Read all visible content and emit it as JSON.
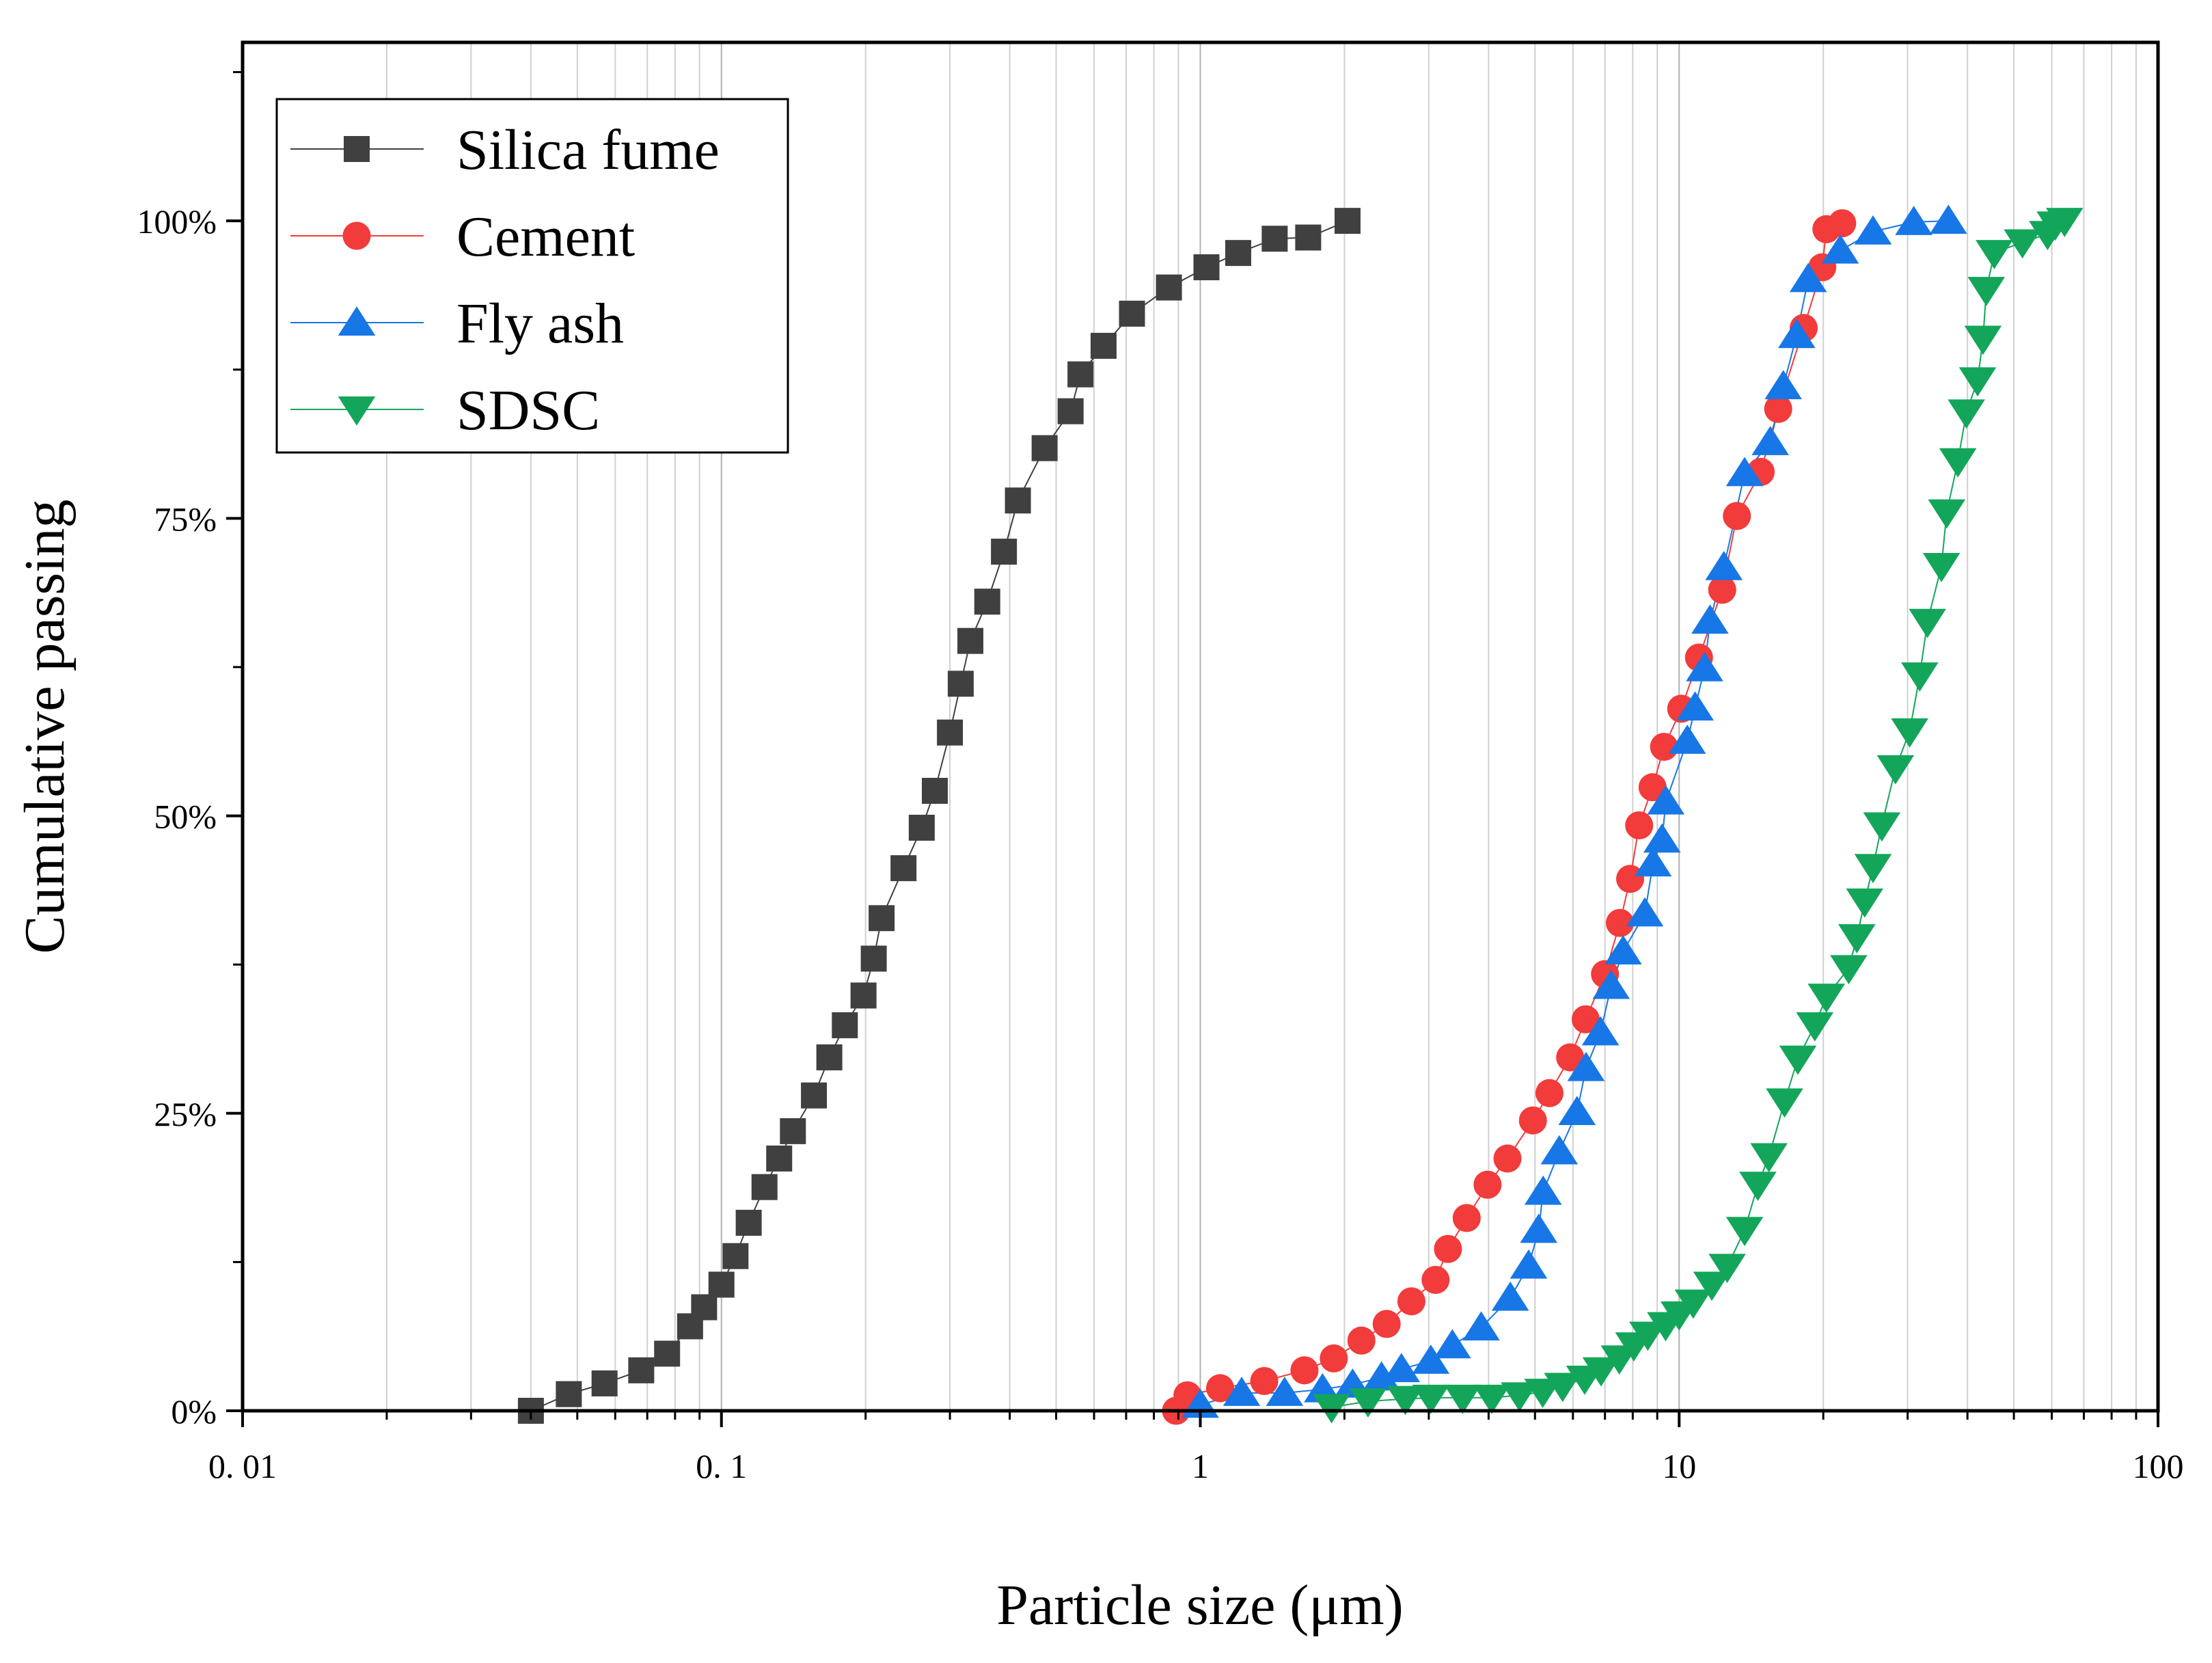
{
  "chart_data": {
    "type": "scatter",
    "title": "",
    "xlabel": "Particle size (μm)",
    "ylabel": "Cumulative passing",
    "xscale": "log",
    "xlim": [
      0.01,
      100
    ],
    "ylim": [
      0,
      1.15
    ],
    "x_ticks": [
      {
        "value": 0.01,
        "label": "0. 01"
      },
      {
        "value": 0.1,
        "label": "0. 1"
      },
      {
        "value": 1,
        "label": "1"
      },
      {
        "value": 10,
        "label": "10"
      },
      {
        "value": 100,
        "label": "100"
      }
    ],
    "y_ticks": [
      {
        "value": 0,
        "label": "0%"
      },
      {
        "value": 0.25,
        "label": "25%"
      },
      {
        "value": 0.5,
        "label": "50%"
      },
      {
        "value": 0.75,
        "label": "75%"
      },
      {
        "value": 1.0,
        "label": "100%"
      }
    ],
    "grid": "vertical-minor",
    "legend_position": "top-left",
    "series": [
      {
        "name": "Silica fume",
        "marker": "square",
        "color": "#404040",
        "x": [
          0.04,
          0.048,
          0.057,
          0.068,
          0.077,
          0.086,
          0.092,
          0.1,
          0.107,
          0.114,
          0.123,
          0.132,
          0.141,
          0.156,
          0.168,
          0.181,
          0.198,
          0.208,
          0.216,
          0.24,
          0.262,
          0.279,
          0.3,
          0.316,
          0.331,
          0.359,
          0.389,
          0.416,
          0.473,
          0.536,
          0.562,
          0.628,
          0.72,
          0.86,
          1.03,
          1.2,
          1.43,
          1.68,
          2.03
        ],
        "y": [
          0.0,
          0.014,
          0.023,
          0.034,
          0.048,
          0.071,
          0.087,
          0.106,
          0.13,
          0.158,
          0.188,
          0.212,
          0.235,
          0.265,
          0.297,
          0.324,
          0.349,
          0.38,
          0.414,
          0.456,
          0.49,
          0.521,
          0.57,
          0.611,
          0.647,
          0.68,
          0.722,
          0.765,
          0.809,
          0.84,
          0.871,
          0.895,
          0.922,
          0.944,
          0.961,
          0.973,
          0.985,
          0.986,
          1.0
        ]
      },
      {
        "name": "Cement",
        "marker": "circle",
        "color": "#f23b3b",
        "x": [
          0.89,
          0.94,
          1.1,
          1.36,
          1.65,
          1.9,
          2.17,
          2.45,
          2.76,
          3.1,
          3.29,
          3.6,
          3.98,
          4.38,
          4.95,
          5.36,
          5.92,
          6.38,
          7.0,
          7.52,
          7.9,
          8.25,
          8.8,
          9.3,
          10.1,
          11.0,
          12.3,
          13.2,
          14.8,
          16.1,
          18.2,
          19.9,
          20.3,
          21.9
        ],
        "y": [
          0.0,
          0.013,
          0.019,
          0.025,
          0.034,
          0.044,
          0.059,
          0.073,
          0.092,
          0.11,
          0.136,
          0.162,
          0.19,
          0.212,
          0.244,
          0.267,
          0.297,
          0.329,
          0.367,
          0.41,
          0.447,
          0.492,
          0.524,
          0.558,
          0.59,
          0.633,
          0.69,
          0.752,
          0.789,
          0.842,
          0.91,
          0.961,
          0.993,
          0.998
        ]
      },
      {
        "name": "Fly ash",
        "marker": "triangle-up",
        "color": "#1777e6",
        "x": [
          1.0,
          1.22,
          1.5,
          1.8,
          2.08,
          2.39,
          2.63,
          3.03,
          3.36,
          3.86,
          4.44,
          4.85,
          5.09,
          5.2,
          5.62,
          6.12,
          6.39,
          6.85,
          7.21,
          7.64,
          8.48,
          8.82,
          9.21,
          9.38,
          10.4,
          10.8,
          11.3,
          11.6,
          12.4,
          13.7,
          15.5,
          16.5,
          17.6,
          18.6,
          21.7,
          25.4,
          30.9,
          36.5
        ],
        "y": [
          0.005,
          0.015,
          0.015,
          0.018,
          0.022,
          0.028,
          0.035,
          0.042,
          0.055,
          0.07,
          0.095,
          0.122,
          0.152,
          0.184,
          0.218,
          0.251,
          0.288,
          0.318,
          0.357,
          0.386,
          0.418,
          0.46,
          0.48,
          0.512,
          0.563,
          0.591,
          0.624,
          0.664,
          0.709,
          0.788,
          0.814,
          0.861,
          0.904,
          0.951,
          0.975,
          0.991,
          0.999,
          1.0
        ]
      },
      {
        "name": "SDSC",
        "marker": "triangle-down",
        "color": "#13a65a",
        "x": [
          1.88,
          2.24,
          2.68,
          3.03,
          3.53,
          4.06,
          4.64,
          5.19,
          5.71,
          6.35,
          6.87,
          7.5,
          8.04,
          8.6,
          9.37,
          10.0,
          10.7,
          11.7,
          12.6,
          13.7,
          14.6,
          15.4,
          16.6,
          17.7,
          19.2,
          20.3,
          22.6,
          23.5,
          24.4,
          25.4,
          26.5,
          28.3,
          30.3,
          31.8,
          33.0,
          35.3,
          36.2,
          38.2,
          39.8,
          42.0,
          43.1,
          43.8,
          45.5,
          52.1,
          58.8,
          61.0,
          63.8
        ],
        "y": [
          0.003,
          0.008,
          0.01,
          0.011,
          0.011,
          0.011,
          0.013,
          0.016,
          0.021,
          0.027,
          0.034,
          0.044,
          0.055,
          0.064,
          0.072,
          0.081,
          0.091,
          0.106,
          0.121,
          0.152,
          0.19,
          0.214,
          0.26,
          0.296,
          0.324,
          0.348,
          0.372,
          0.398,
          0.428,
          0.457,
          0.492,
          0.54,
          0.571,
          0.618,
          0.663,
          0.71,
          0.755,
          0.798,
          0.839,
          0.866,
          0.901,
          0.942,
          0.973,
          0.982,
          0.989,
          0.997,
          1.0
        ]
      }
    ]
  }
}
